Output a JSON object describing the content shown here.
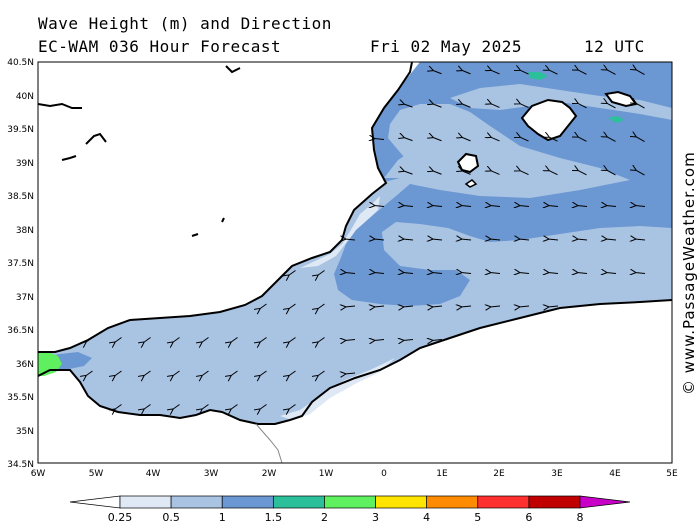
{
  "title": {
    "line1": "Wave Height (m) and Direction",
    "line2": "EC-WAM 036 Hour Forecast",
    "date": "Fri 02 May 2025",
    "time": "12 UTC"
  },
  "watermark": "© www.PassageWeather.com",
  "axes": {
    "lat_labels": [
      "40.5N",
      "40N",
      "39.5N",
      "39N",
      "38.5N",
      "38N",
      "37.5N",
      "37N",
      "36.5N",
      "36N",
      "35.5N",
      "35N",
      "34.5N"
    ],
    "lon_labels": [
      "6W",
      "5W",
      "4W",
      "3W",
      "2W",
      "1W",
      "0",
      "1E",
      "2E",
      "3E",
      "4E",
      "5E"
    ]
  },
  "legend": {
    "labels": [
      "0.25",
      "0.5",
      "1",
      "1.5",
      "2",
      "3",
      "4",
      "5",
      "6",
      "8"
    ],
    "colors": [
      "#ffffff",
      "#dfe8f5",
      "#a9c3e3",
      "#6b97d2",
      "#2cc09a",
      "#5ef05e",
      "#ffe400",
      "#ff8c00",
      "#ff3030",
      "#c00000",
      "#c800c8"
    ]
  },
  "palette": {
    "land": "#ffffff",
    "coast": "#000000",
    "sea_very_low": "#dfe8f5",
    "sea_low": "#a9c3e3",
    "sea_mid": "#6b97d2",
    "sea_high": "#2cc09a",
    "sea_higher": "#5ef05e"
  }
}
